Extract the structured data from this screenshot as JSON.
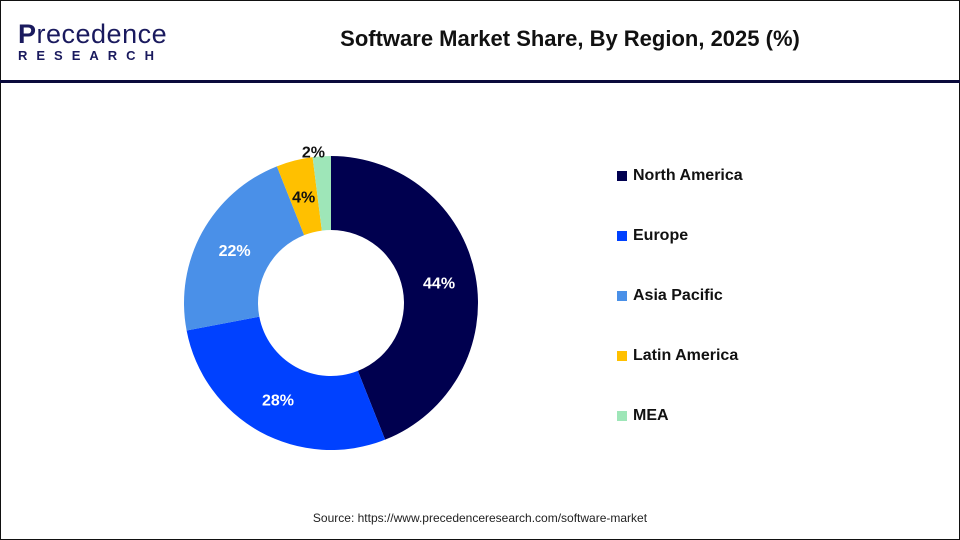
{
  "logo": {
    "line1_prefix": "P",
    "line1_rest": "recedence",
    "line2": "RESEARCH"
  },
  "chart_data": {
    "type": "pie",
    "donut": true,
    "title": "Software Market Share, By Region, 2025 (%)",
    "categories": [
      "North America",
      "Europe",
      "Asia Pacific",
      "Latin America",
      "MEA"
    ],
    "values": [
      44,
      28,
      22,
      4,
      2
    ],
    "data_labels": [
      "44%",
      "28%",
      "22%",
      "4%",
      "2%"
    ],
    "colors": [
      "#00004f",
      "#0041ff",
      "#4a90e8",
      "#ffc000",
      "#9ee6b8"
    ],
    "label_colors": [
      "#ffffff",
      "#ffffff",
      "#ffffff",
      "#111111",
      "#111111"
    ],
    "legend_placement": "right"
  },
  "source": "Source: https://www.precedenceresearch.com/software-market"
}
